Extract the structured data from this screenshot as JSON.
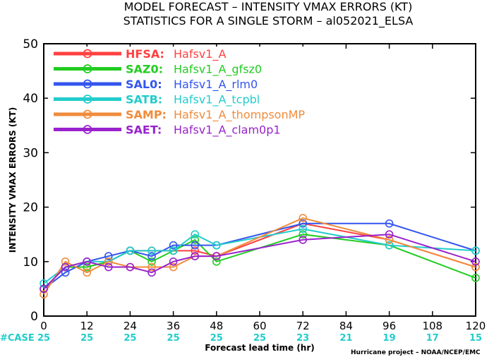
{
  "chart_data": {
    "type": "line",
    "title_line1": "MODEL FORECAST – INTENSITY VMAX ERRORS (KT)",
    "title_line2": "STATISTICS FOR A SINGLE STORM – al052021_ELSA",
    "xlabel": "Forecast lead time (hr)",
    "ylabel": "INTENSITY VMAX ERRORS (KT)",
    "xlim": [
      0,
      120
    ],
    "ylim": [
      0,
      50
    ],
    "x_ticks": [
      0,
      12,
      24,
      36,
      48,
      60,
      72,
      84,
      96,
      108,
      120
    ],
    "y_ticks": [
      0,
      10,
      20,
      30,
      40,
      50
    ],
    "grid": false,
    "legend_position": "top-left",
    "case_label": "#CASE",
    "case_counts": [
      {
        "x": 0,
        "n": "25"
      },
      {
        "x": 12,
        "n": "25"
      },
      {
        "x": 24,
        "n": "25"
      },
      {
        "x": 36,
        "n": "25"
      },
      {
        "x": 48,
        "n": "25"
      },
      {
        "x": 60,
        "n": "25"
      },
      {
        "x": 72,
        "n": "23"
      },
      {
        "x": 84,
        "n": "21"
      },
      {
        "x": 96,
        "n": "19"
      },
      {
        "x": 108,
        "n": "17"
      },
      {
        "x": 120,
        "n": "15"
      }
    ],
    "footer": "Hurricane project – NOAA/NCEP/EMC",
    "series": [
      {
        "name": "HFSA:",
        "desc": "Hafsv1_A",
        "color": "#ff4040",
        "x": [
          0,
          6,
          12,
          18,
          24,
          30,
          36,
          42,
          48,
          72,
          96,
          120
        ],
        "y": [
          5,
          9,
          9,
          10,
          12,
          12,
          12,
          12,
          11,
          17,
          14,
          9
        ]
      },
      {
        "name": "SAZ0:",
        "desc": "Hafsv1_A_gfsz0",
        "color": "#22cc22",
        "x": [
          0,
          6,
          12,
          18,
          24,
          30,
          36,
          42,
          48,
          72,
          96,
          120
        ],
        "y": [
          5,
          9,
          9,
          10,
          12,
          10,
          12,
          14,
          10,
          15,
          13,
          7
        ]
      },
      {
        "name": "SAL0:",
        "desc": "Hafsv1_A_rlm0",
        "color": "#3355ee",
        "x": [
          0,
          6,
          12,
          18,
          24,
          30,
          36,
          42,
          48,
          72,
          96,
          120
        ],
        "y": [
          5,
          8,
          10,
          11,
          12,
          11,
          13,
          13,
          13,
          17,
          17,
          12
        ]
      },
      {
        "name": "SATB:",
        "desc": "Hafsv1_A_tcpbl",
        "color": "#22cccc",
        "x": [
          0,
          6,
          12,
          18,
          24,
          30,
          36,
          42,
          48,
          72,
          96,
          120
        ],
        "y": [
          6,
          9,
          10,
          10,
          12,
          12,
          12,
          15,
          13,
          16,
          13,
          12
        ]
      },
      {
        "name": "SAMP:",
        "desc": "Hafsv1_A_thompsonMP",
        "color": "#f08c3c",
        "x": [
          0,
          6,
          12,
          18,
          24,
          30,
          36,
          42,
          48,
          72,
          96,
          120
        ],
        "y": [
          4,
          10,
          8,
          10,
          9,
          9,
          9,
          11,
          11,
          18,
          14,
          9
        ]
      },
      {
        "name": "SAET:",
        "desc": "Hafsv1_A_clam0p1",
        "color": "#9922cc",
        "x": [
          0,
          6,
          12,
          18,
          24,
          30,
          36,
          42,
          48,
          72,
          96,
          120
        ],
        "y": [
          5,
          9,
          10,
          9,
          9,
          8,
          10,
          11,
          11,
          14,
          15,
          10
        ]
      }
    ]
  }
}
